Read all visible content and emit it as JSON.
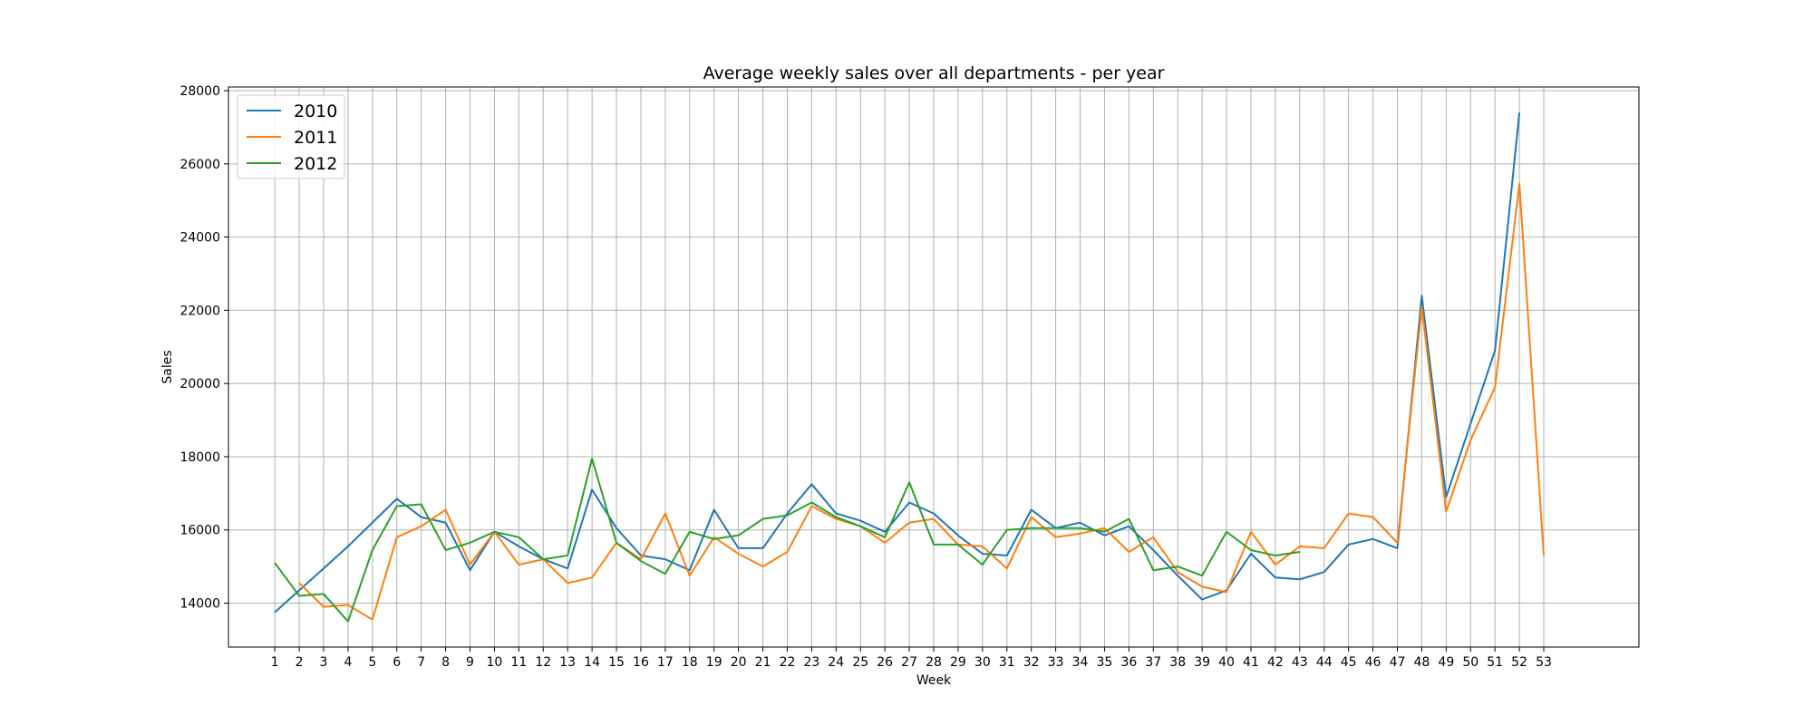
{
  "chart_data": {
    "type": "line",
    "title": "Average weekly sales over all departments - per year",
    "xlabel": "Week",
    "ylabel": "Sales",
    "x": [
      1,
      2,
      3,
      4,
      5,
      6,
      7,
      8,
      9,
      10,
      11,
      12,
      13,
      14,
      15,
      16,
      17,
      18,
      19,
      20,
      21,
      22,
      23,
      24,
      25,
      26,
      27,
      28,
      29,
      30,
      31,
      32,
      33,
      34,
      35,
      36,
      37,
      38,
      39,
      40,
      41,
      42,
      43,
      44,
      45,
      46,
      47,
      48,
      49,
      50,
      51,
      52,
      53
    ],
    "xlim": [
      -0.9,
      56.9
    ],
    "ylim": [
      12800,
      28100
    ],
    "yticks": [
      14000,
      16000,
      18000,
      20000,
      22000,
      24000,
      26000,
      28000
    ],
    "grid": true,
    "legend_position": "top-left",
    "series": [
      {
        "name": "2010",
        "color": "#1f77b4",
        "x": [
          1,
          2,
          3,
          4,
          5,
          6,
          7,
          8,
          9,
          10,
          11,
          12,
          13,
          14,
          15,
          16,
          17,
          18,
          19,
          20,
          21,
          22,
          23,
          24,
          25,
          26,
          27,
          28,
          29,
          30,
          31,
          32,
          33,
          34,
          35,
          36,
          37,
          38,
          39,
          40,
          41,
          42,
          43,
          44,
          45,
          46,
          47,
          48,
          49,
          50,
          51,
          52
        ],
        "values": [
          13750,
          14350,
          14950,
          15550,
          16200,
          16850,
          16350,
          16200,
          14900,
          15950,
          15550,
          15200,
          14950,
          17100,
          16050,
          15300,
          15200,
          14900,
          16550,
          15500,
          15500,
          16450,
          17250,
          16450,
          16250,
          15950,
          16750,
          16450,
          15850,
          15350,
          15300,
          16550,
          16050,
          16200,
          15850,
          16100,
          15450,
          14750,
          14100,
          14350,
          15350,
          14700,
          14650,
          14850,
          15600,
          15750,
          15500,
          22400,
          16900,
          18900,
          20900,
          27400
        ]
      },
      {
        "name": "2011",
        "color": "#ff7f0e",
        "x": [
          2,
          3,
          4,
          5,
          6,
          7,
          8,
          9,
          10,
          11,
          12,
          13,
          14,
          15,
          16,
          17,
          18,
          19,
          20,
          21,
          22,
          23,
          24,
          25,
          26,
          27,
          28,
          29,
          30,
          31,
          32,
          33,
          34,
          35,
          36,
          37,
          38,
          39,
          40,
          41,
          42,
          43,
          44,
          45,
          46,
          47,
          48,
          49,
          50,
          51,
          52,
          53
        ],
        "values": [
          14550,
          13900,
          13950,
          13550,
          15800,
          16100,
          16550,
          15050,
          15950,
          15050,
          15200,
          14550,
          14700,
          15650,
          15200,
          16450,
          14750,
          15800,
          15350,
          15000,
          15400,
          16650,
          16300,
          16100,
          15650,
          16200,
          16300,
          15600,
          15550,
          14950,
          16350,
          15800,
          15900,
          16050,
          15400,
          15800,
          14850,
          14450,
          14300,
          15950,
          15050,
          15550,
          15500,
          16450,
          16350,
          15650,
          22100,
          16500,
          18450,
          19900,
          25450,
          15300
        ]
      },
      {
        "name": "2012",
        "color": "#2ca02c",
        "x": [
          1,
          2,
          3,
          4,
          5,
          6,
          7,
          8,
          9,
          10,
          11,
          12,
          13,
          14,
          15,
          16,
          17,
          18,
          19,
          20,
          21,
          22,
          23,
          24,
          25,
          26,
          27,
          28,
          29,
          30,
          31,
          32,
          33,
          34,
          35,
          36,
          37,
          38,
          39,
          40,
          41,
          42,
          43
        ],
        "values": [
          15100,
          14200,
          14250,
          13500,
          15450,
          16650,
          16700,
          15450,
          15650,
          15950,
          15800,
          15200,
          15300,
          17950,
          15650,
          15150,
          14800,
          15950,
          15750,
          15850,
          16300,
          16400,
          16750,
          16350,
          16100,
          15800,
          17300,
          15600,
          15600,
          15050,
          16000,
          16050,
          16050,
          16050,
          15950,
          16300,
          14900,
          15000,
          14750,
          15950,
          15450,
          15300,
          15400
        ]
      }
    ]
  }
}
